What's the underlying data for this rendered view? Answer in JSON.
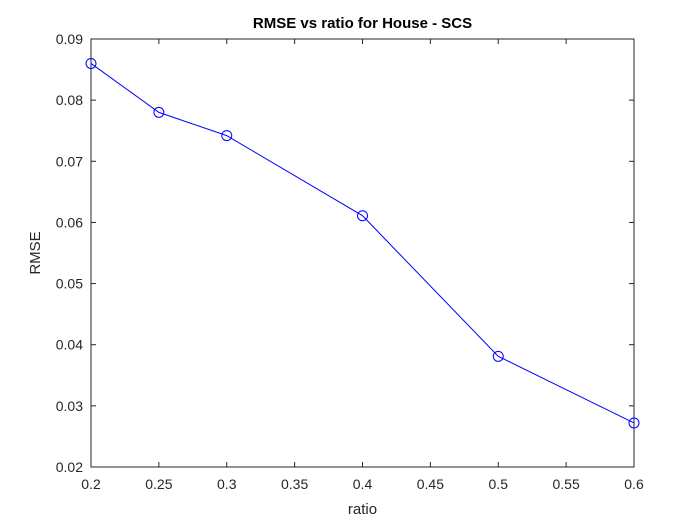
{
  "chart_data": {
    "type": "line",
    "title": "RMSE vs ratio for House - SCS",
    "xlabel": "ratio",
    "ylabel": "RMSE",
    "xlim": [
      0.2,
      0.6
    ],
    "ylim": [
      0.02,
      0.09
    ],
    "xticks": [
      "0.2",
      "0.25",
      "0.3",
      "0.35",
      "0.4",
      "0.45",
      "0.5",
      "0.55",
      "0.6"
    ],
    "yticks": [
      "0.02",
      "0.03",
      "0.04",
      "0.05",
      "0.06",
      "0.07",
      "0.08",
      "0.09"
    ],
    "grid": false,
    "series": [
      {
        "color": "#0000ff",
        "marker": "circle",
        "x": [
          0.2,
          0.25,
          0.3,
          0.4,
          0.5,
          0.6
        ],
        "y": [
          0.086,
          0.078,
          0.0742,
          0.0611,
          0.0381,
          0.0272
        ]
      }
    ]
  }
}
